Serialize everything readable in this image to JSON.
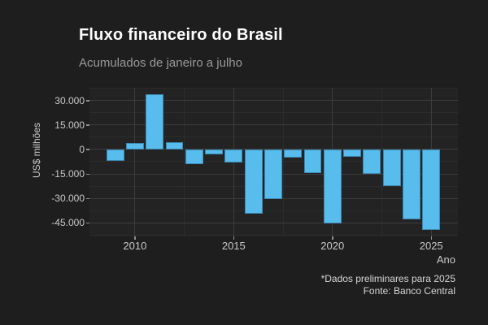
{
  "header": {
    "title": "Fluxo financeiro do Brasil",
    "subtitle": "Acumulados de janeiro a julho"
  },
  "chart_data": {
    "type": "bar",
    "title": "Fluxo financeiro do Brasil",
    "subtitle": "Acumulados de janeiro a julho",
    "xlabel": "Ano",
    "ylabel": "US$ milhões",
    "caption_lines": [
      "*Dados preliminares para 2025",
      "Fonte: Banco Central"
    ],
    "x": [
      2009,
      2010,
      2011,
      2012,
      2013,
      2014,
      2015,
      2016,
      2017,
      2018,
      2019,
      2020,
      2021,
      2022,
      2023,
      2024,
      2025
    ],
    "values": [
      -6800,
      3800,
      33700,
      4200,
      -9200,
      -3200,
      -7800,
      -39200,
      -30500,
      -5000,
      -14300,
      -45500,
      -4400,
      -15000,
      -22500,
      -43000,
      -49200
    ],
    "units": "US$ milhões",
    "bar_width_years": 0.9,
    "xlim": [
      2007.7,
      2026.35
    ],
    "ylim": [
      -53300,
      37800
    ],
    "x_major_ticks": [
      {
        "value": 2010,
        "label": "2010"
      },
      {
        "value": 2015,
        "label": "2015"
      },
      {
        "value": 2020,
        "label": "2020"
      },
      {
        "value": 2025,
        "label": "2025"
      }
    ],
    "x_minor_gridlines": [
      2012.5,
      2017.5,
      2022.5
    ],
    "y_major_ticks": [
      {
        "value": 30000,
        "label": "30.000"
      },
      {
        "value": 15000,
        "label": "15.000"
      },
      {
        "value": 0,
        "label": "0"
      },
      {
        "value": -15000,
        "label": "-15.000"
      },
      {
        "value": -30000,
        "label": "-30.000"
      },
      {
        "value": -45000,
        "label": "-45.000"
      }
    ],
    "y_minor_gridlines": [
      37500,
      22500,
      7500,
      -7500,
      -22500,
      -37500,
      -52500
    ],
    "grid": true,
    "legend": false,
    "colors": {
      "bar_fill": "#58bdec",
      "bar_border": "#3c87b2",
      "page_background": "#1e1e1e",
      "panel_background": "#232323",
      "grid_major": "#3c3c3c",
      "grid_minor": "#2c2c2c",
      "title_text": "#ffffff",
      "subtitle_text": "#9a9a9a",
      "axis_text": "#c9c9c9",
      "tick_mark": "#8f8f8f"
    }
  }
}
